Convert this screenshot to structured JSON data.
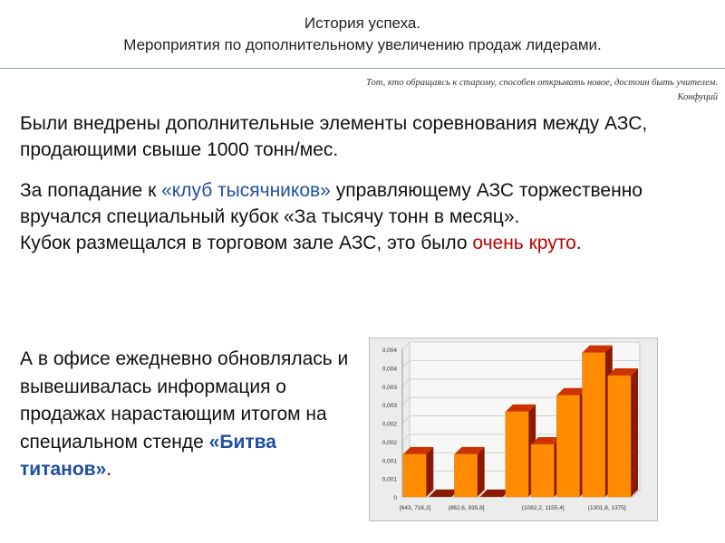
{
  "header": {
    "title_line1": "История успеха.",
    "title_line2": "Мероприятия по дополнительному увеличению продаж лидерами.",
    "quote_line1": "Тот, кто обращаясь к старому, способен открывать новое, достоин быть учителем.",
    "quote_author": "Конфуций"
  },
  "body": {
    "p1": "Были внедрены дополнительные элементы соревнования между АЗС, продающими свыше 1000 тонн/мес.",
    "p2_a": "За попадание к ",
    "p2_link": "«клуб тысячников»",
    "p2_b": " управляющему АЗС торжественно вручался специальный кубок «За тысячу тонн в месяц».",
    "p3_a": "Кубок размещался в торговом зале АЗС, это было ",
    "p3_red": "очень круто",
    "p3_b": ".",
    "p4_a": "А в офисе ежедневно обновлялась и вывешивалась информация о продажах нарастающим итогом на специальном стенде ",
    "p4_bold": "«Битва титанов»",
    "p4_b": "."
  },
  "colors": {
    "accent_blue": "#1f4fa3",
    "accent_red": "#c00000",
    "bar_front": "#ff8c00",
    "bar_side": "#8b1a00",
    "bar_top": "#cc3300"
  },
  "chart_data": {
    "type": "bar",
    "y_ticks": [
      "0",
      "0,001",
      "0,001",
      "0,002",
      "0,002",
      "0,003",
      "0,003",
      "0,004",
      "0,004"
    ],
    "ylim": [
      0,
      0.0045
    ],
    "x_tick_labels": [
      "[643, 716,2]",
      "(862,6, 935,8]",
      "(1082,2, 1155,4]",
      "(1301,8, 1375]"
    ],
    "values": [
      0.0013,
      0.0,
      0.0013,
      0.0,
      0.0026,
      0.0016,
      0.0031,
      0.0044,
      0.0037
    ],
    "grid": true
  }
}
